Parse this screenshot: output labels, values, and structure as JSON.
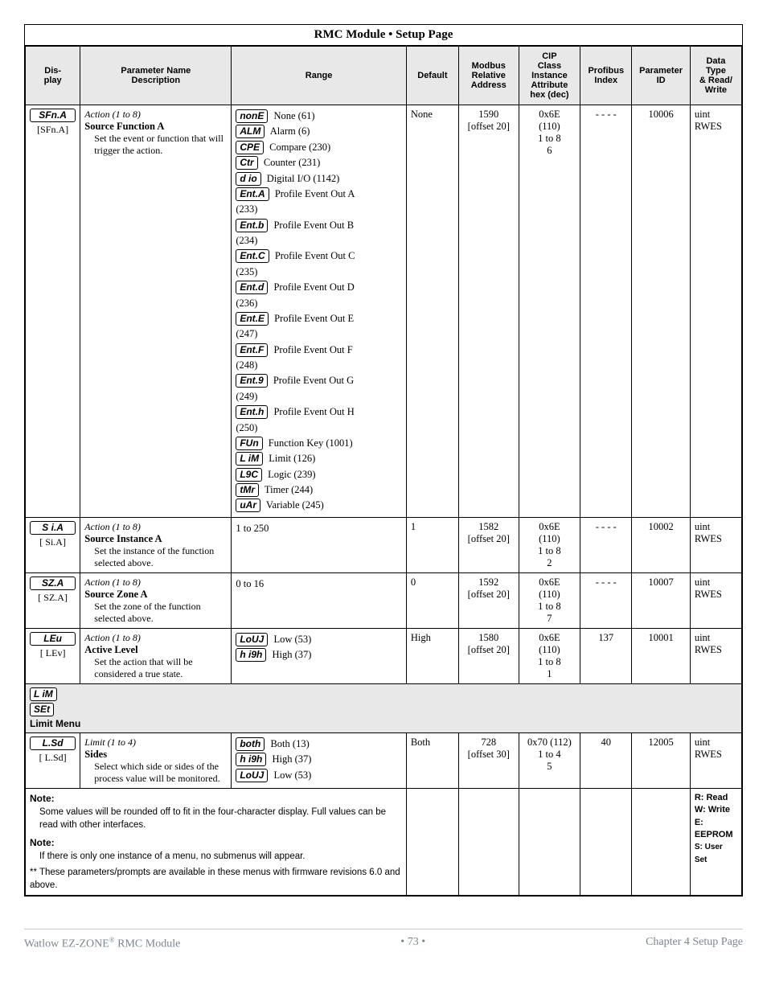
{
  "page_title": "RMC Module  •  Setup Page",
  "headers": {
    "display": "Dis-\nplay",
    "param": "Parameter Name\nDescription",
    "range": "Range",
    "default": "Default",
    "modbus": "Modbus\nRelative\nAddress",
    "cip": "CIP\nClass\nInstance\nAttribute\nhex (dec)",
    "profibus": "Profibus\nIndex",
    "paramid": "Parameter\nID",
    "datatype": "Data\nType\n& Read/\nWrite"
  },
  "rows": [
    {
      "seg": "SFn.A",
      "under": "[SFn.A]",
      "action": "Action (1 to 8)",
      "title": "Source Function A",
      "desc": "Set the event or function that will trigger the action.",
      "range_items": [
        {
          "seg": "nonE",
          "txt": "None (61)"
        },
        {
          "seg": "ALM",
          "txt": "Alarm (6)"
        },
        {
          "seg": "CPE",
          "txt": "Compare (230)"
        },
        {
          "seg": "Ctr",
          "txt": "Counter (231)"
        },
        {
          "seg": "d io",
          "txt": "Digital I/O (1142)"
        },
        {
          "seg": "Ent.A",
          "txt": "Profile Event Out A (233)"
        },
        {
          "seg": "Ent.b",
          "txt": "Profile Event Out B (234)"
        },
        {
          "seg": "Ent.C",
          "txt": "Profile Event Out C (235)"
        },
        {
          "seg": "Ent.d",
          "txt": "Profile Event Out D (236)"
        },
        {
          "seg": "Ent.E",
          "txt": "Profile Event Out E (247)"
        },
        {
          "seg": "Ent.F",
          "txt": "Profile Event Out F (248)"
        },
        {
          "seg": "Ent.9",
          "txt": "Profile Event Out G (249)"
        },
        {
          "seg": "Ent.h",
          "txt": "Profile Event Out H (250)"
        },
        {
          "seg": "FUn",
          "txt": "Function Key (1001)"
        },
        {
          "seg": "L iM",
          "txt": "Limit (126)"
        },
        {
          "seg": "L9C",
          "txt": "Logic (239)"
        },
        {
          "seg": "tMr",
          "txt": "Timer (244)"
        },
        {
          "seg": "uAr",
          "txt": "Variable (245)"
        }
      ],
      "default": "None",
      "modbus": "1590\n[offset 20]",
      "cip": "0x6E\n(110)\n1 to 8\n6",
      "profibus": "- - - -",
      "paramid": "10006",
      "datatype": "uint\nRWES"
    },
    {
      "seg": "S i.A",
      "under": "[ Si.A]",
      "action": "Action (1 to 8)",
      "title": "Source Instance A",
      "desc": "Set the instance of the function selected above.",
      "range_text": "1 to 250",
      "default": "1",
      "modbus": "1582\n[offset 20]",
      "cip": "0x6E\n(110)\n1 to 8\n2",
      "profibus": "- - - -",
      "paramid": "10002",
      "datatype": "uint\nRWES"
    },
    {
      "seg": "SZ.A",
      "under": "[ SZ.A]",
      "action": "Action (1 to 8)",
      "title": "Source Zone A",
      "desc": "Set the zone of the function selected above.",
      "range_text": "0 to 16",
      "default": "0",
      "modbus": "1592\n[offset 20]",
      "cip": "0x6E\n(110)\n1 to 8\n7",
      "profibus": "- - - -",
      "paramid": "10007",
      "datatype": "uint\nRWES"
    },
    {
      "seg": "LEu",
      "under": "[ LEv]",
      "action": "Action (1 to 8)",
      "title": "Active Level",
      "desc": "Set the action that will be considered a true state.",
      "range_items": [
        {
          "seg": "LoUJ",
          "txt": "Low (53)"
        },
        {
          "seg": "h i9h",
          "txt": "High (37)"
        }
      ],
      "default": "High",
      "modbus": "1580\n[offset 20]",
      "cip": "0x6E\n(110)\n1 to 8\n1",
      "profibus": "137",
      "paramid": "10001",
      "datatype": "uint\nRWES"
    }
  ],
  "section": {
    "seg1": "L iM",
    "seg2": "SEt",
    "label": "Limit Menu"
  },
  "limit_row": {
    "seg": "L.Sd",
    "under": "[ L.Sd]",
    "action": "Limit (1 to 4)",
    "title": "Sides",
    "desc": "Select which side or sides of the process value will be monitored.",
    "range_items": [
      {
        "seg": "both",
        "txt": "Both (13)"
      },
      {
        "seg": "h i9h",
        "txt": "High (37)"
      },
      {
        "seg": "LoUJ",
        "txt": "Low (53)"
      }
    ],
    "default": "Both",
    "modbus": "728\n[offset 30]",
    "cip": "0x70 (112)\n1 to 4\n5",
    "profibus": "40",
    "paramid": "12005",
    "datatype": "uint\nRWES"
  },
  "notes": {
    "n1_hdr": "Note:",
    "n1": "Some values will be rounded off to fit in the four-character display. Full values can be read with other interfaces.",
    "n2_hdr": "Note:",
    "n2": "If there is only one instance of a menu, no submenus will appear.",
    "n3": "** These parameters/prompts are available in these menus with firmware revisions 6.0 and above."
  },
  "legend": {
    "r": "R: Read",
    "w": "W: Write",
    "e": "E: EEPROM",
    "s": "S: User Set"
  },
  "footer": {
    "left": "Watlow EZ-ZONE",
    "left_sup": "®",
    "left2": " RMC Module",
    "center": "•  73  •",
    "right": "Chapter 4 Setup Page"
  }
}
